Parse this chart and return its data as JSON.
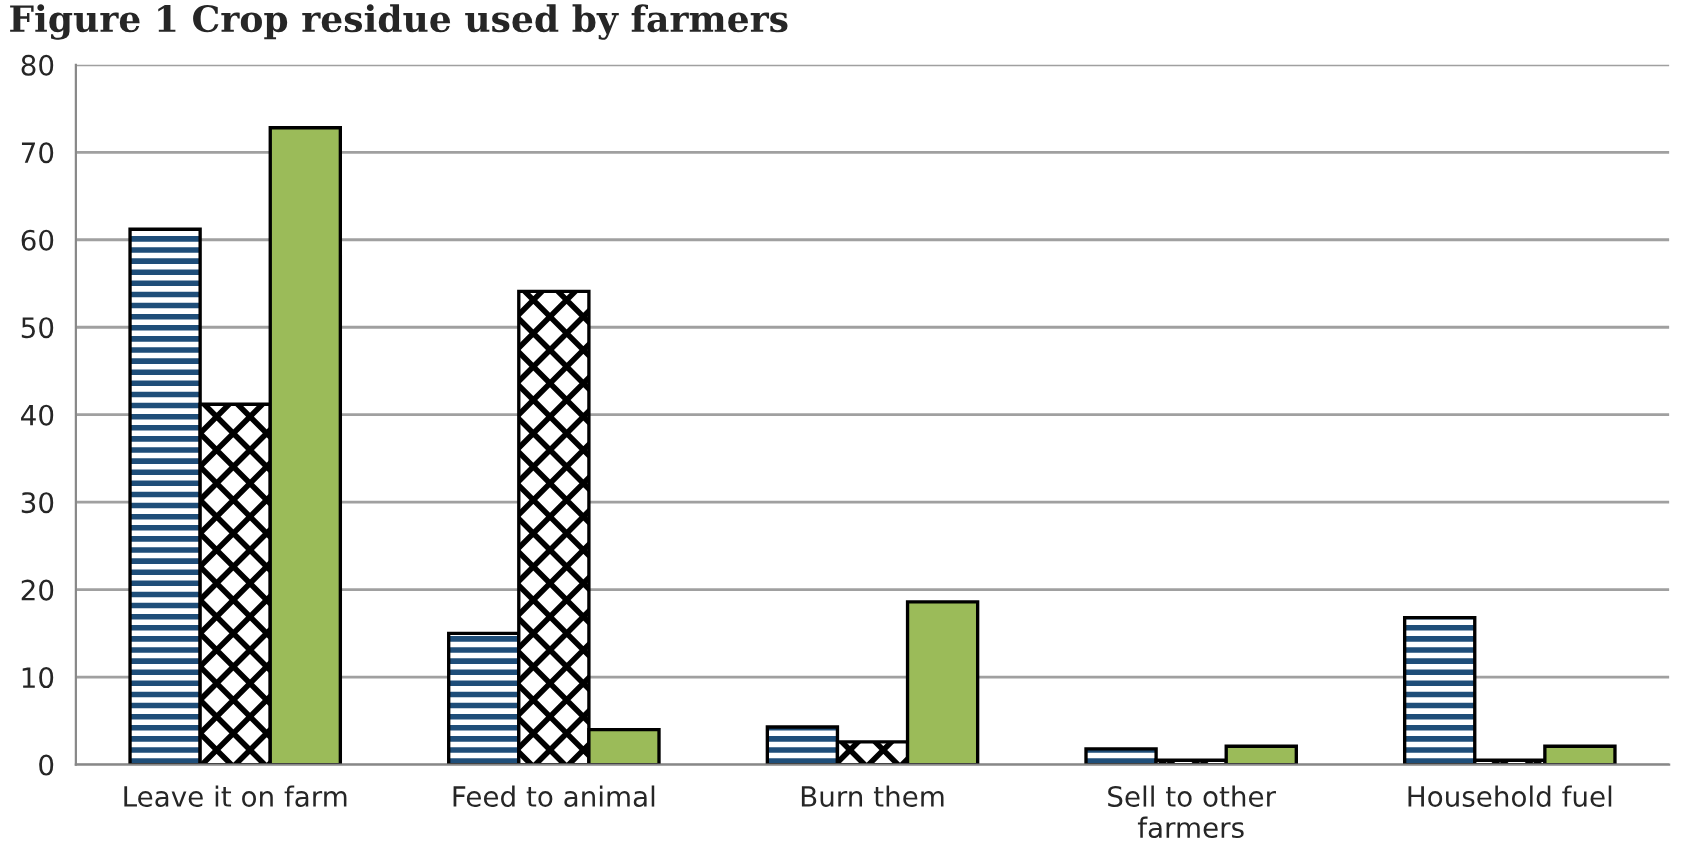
{
  "chart_data": {
    "type": "bar",
    "title": "Figure 1 Crop residue used by farmers",
    "categories": [
      "Leave it on farm",
      "Feed to animal",
      "Burn them",
      "Sell to other\nfarmers",
      "Household fuel"
    ],
    "series": [
      {
        "color": "#1f4e79",
        "values": [
          61.2,
          15,
          4.3,
          1.8,
          16.8
        ]
      },
      {
        "color": "#000000",
        "values": [
          41.2,
          54.1,
          2.6,
          0.5,
          0.5
        ]
      },
      {
        "color": "#9bbb59",
        "values": [
          72.8,
          4,
          18.6,
          2.1,
          2.1
        ]
      }
    ],
    "ylim": [
      0,
      80
    ],
    "yticks": [
      0,
      10,
      20,
      30,
      40,
      50,
      60,
      70,
      80
    ],
    "grid": "y",
    "legend": false
  }
}
